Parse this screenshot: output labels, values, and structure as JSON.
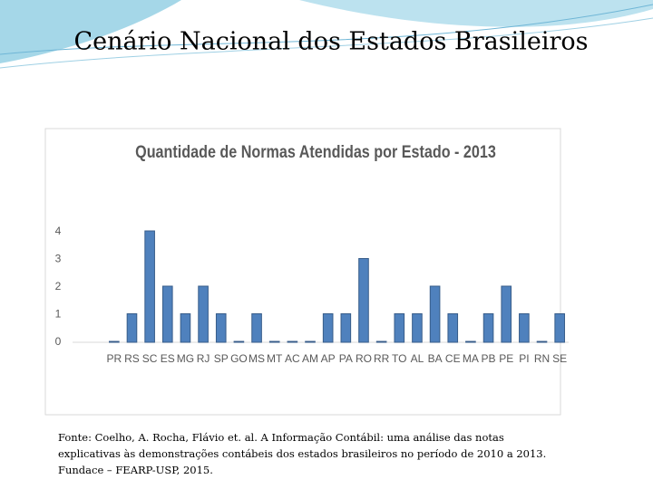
{
  "slide_title": "Cenário Nacional dos Estados Brasileiros",
  "chart_data": {
    "type": "bar",
    "title": "Quantidade de Normas Atendidas por Estado - 2013",
    "categories": [
      "PR",
      "RS",
      "SC",
      "ES",
      "MG",
      "RJ",
      "SP",
      "GO",
      "MS",
      "MT",
      "AC",
      "AM",
      "AP",
      "PA",
      "RO",
      "RR",
      "TO",
      "AL",
      "BA",
      "CE",
      "MA",
      "PB",
      "PE",
      "PI",
      "RN",
      "SE"
    ],
    "values": [
      0,
      1,
      4,
      2,
      1,
      2,
      1,
      0,
      1,
      0,
      0,
      0,
      1,
      1,
      3,
      0,
      1,
      1,
      2,
      1,
      0,
      1,
      2,
      1,
      0,
      1
    ],
    "color": "#4f81bd",
    "ylim": [
      0,
      4
    ],
    "yticks": [
      0,
      1,
      2,
      3,
      4
    ],
    "grid": false
  },
  "source": [
    "Fonte: Coelho, A. Rocha, Flávio et. al. A Informação Contábil: uma análise das notas",
    "explicativas às demonstrações contábeis dos estados brasileiros no período de 2010 a 2013.",
    "Fundace – FEARP-USP, 2015."
  ]
}
